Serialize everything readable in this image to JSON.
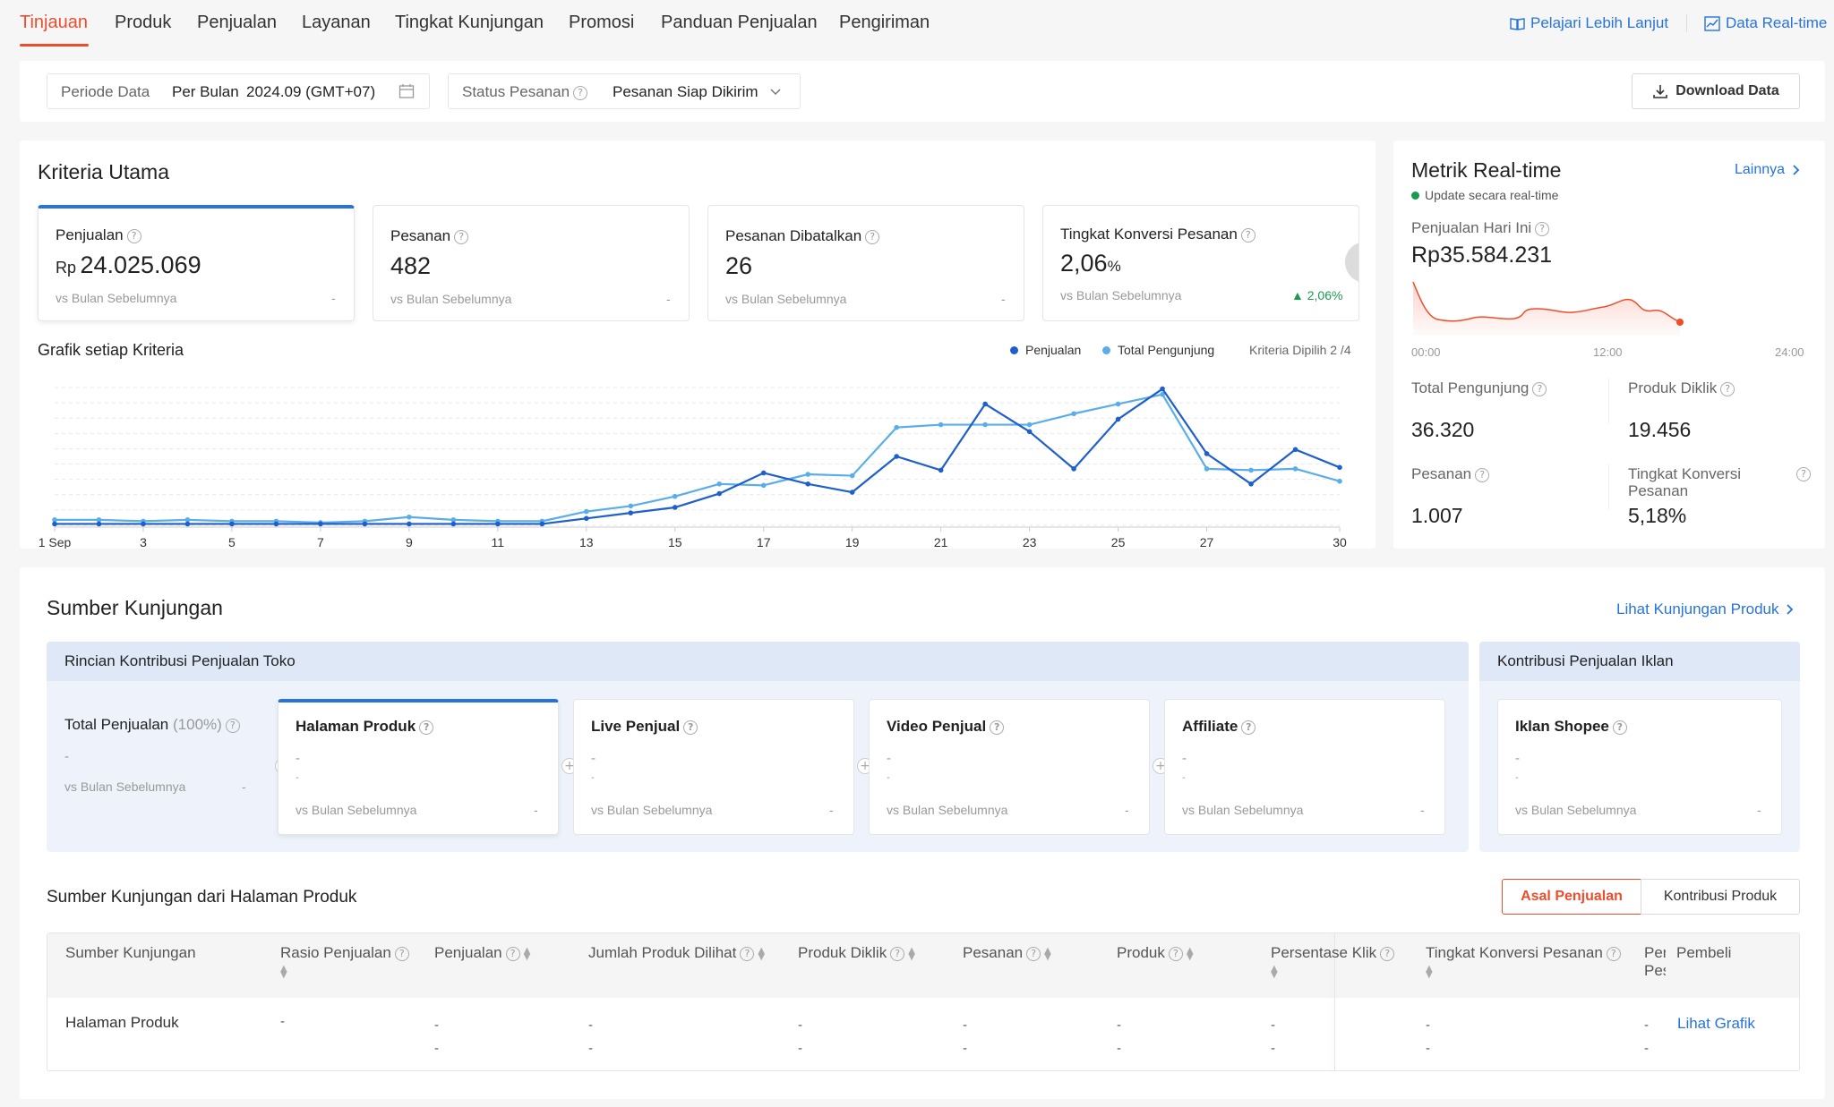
{
  "nav": {
    "tabs": [
      "Tinjauan",
      "Produk",
      "Penjualan",
      "Layanan",
      "Tingkat Kunjungan",
      "Promosi",
      "Panduan Penjualan",
      "Pengiriman"
    ],
    "learn_more": "Pelajari Lebih Lanjut",
    "realtime_data": "Data Real-time"
  },
  "filters": {
    "period_label": "Periode Data",
    "period_mode": "Per Bulan",
    "period_value": "2024.09 (GMT+07)",
    "status_label": "Status Pesanan",
    "status_value": "Pesanan Siap Dikirim",
    "download": "Download Data"
  },
  "kriteria": {
    "title": "Kriteria Utama",
    "vs_text": "vs Bulan Sebelumnya",
    "cards": [
      {
        "label": "Penjualan",
        "prefix": "Rp",
        "value": "24.025.069",
        "change": "-"
      },
      {
        "label": "Pesanan",
        "value": "482",
        "change": "-"
      },
      {
        "label": "Pesanan Dibatalkan",
        "value": "26",
        "change": "-"
      },
      {
        "label": "Tingkat Konversi Pesanan",
        "value": "2,06",
        "suffix": "%",
        "change": "▲ 2,06%"
      }
    ],
    "chart_title": "Grafik setiap Kriteria",
    "chart_selected": "Kriteria Dipilih 2 /4",
    "chart_colors": {
      "penjualan": "#1f5fcc",
      "pengunjung": "#5aaee8"
    }
  },
  "chart_data": {
    "type": "line",
    "x": [
      1,
      2,
      3,
      4,
      5,
      6,
      7,
      8,
      9,
      10,
      11,
      12,
      13,
      14,
      15,
      16,
      17,
      18,
      19,
      20,
      21,
      22,
      23,
      24,
      25,
      26,
      27,
      28,
      29,
      30
    ],
    "x_tick_labels": [
      "1 Sep",
      "3",
      "5",
      "7",
      "9",
      "11",
      "13",
      "15",
      "17",
      "19",
      "21",
      "23",
      "25",
      "27",
      "30"
    ],
    "x_tick_values": [
      1,
      3,
      5,
      7,
      9,
      11,
      13,
      15,
      17,
      19,
      21,
      23,
      25,
      27,
      30
    ],
    "ylim": [
      0,
      100
    ],
    "grid": true,
    "legend": "top-right",
    "series": [
      {
        "name": "Penjualan",
        "values": [
          1,
          1,
          1,
          1,
          1,
          1,
          1,
          1,
          1,
          1,
          1,
          1,
          5,
          9,
          13,
          23,
          38,
          30,
          24,
          50,
          40,
          88,
          68,
          41,
          77,
          99,
          52,
          30,
          55,
          42
        ]
      },
      {
        "name": "Total Pengunjung",
        "values": [
          4,
          4,
          3,
          4,
          3,
          3,
          2,
          3,
          6,
          4,
          3,
          3,
          10,
          14,
          21,
          30,
          29,
          37,
          36,
          71,
          73,
          73,
          73,
          81,
          88,
          95,
          41,
          40,
          41,
          32
        ]
      }
    ]
  },
  "realtime": {
    "title": "Metrik Real-time",
    "more": "Lainnya",
    "subtitle": "Update secara real-time",
    "sales_label": "Penjualan Hari Ini",
    "sales_value": "Rp35.584.231",
    "spark_labels": [
      "00:00",
      "12:00",
      "24:00"
    ],
    "metrics": [
      {
        "label": "Total Pengunjung",
        "value": "36.320"
      },
      {
        "label": "Produk Diklik",
        "value": "19.456"
      },
      {
        "label": "Pesanan",
        "value": "1.007"
      },
      {
        "label": "Tingkat Konversi Pesanan",
        "value": "5,18%"
      }
    ]
  },
  "sumber": {
    "title": "Sumber Kunjungan",
    "link": "Lihat Kunjungan Produk",
    "rincian_title": "Rincian Kontribusi Penjualan Toko",
    "iklan_title": "Kontribusi Penjualan Iklan",
    "total_label": "Total Penjualan",
    "total_pct": "(100%)",
    "dash": "-",
    "vs_text": "vs Bulan Sebelumnya",
    "channels": [
      "Halaman Produk",
      "Live Penjual",
      "Video Penjual",
      "Affiliate"
    ],
    "iklan": "Iklan Shopee"
  },
  "table": {
    "title": "Sumber Kunjungan dari Halaman Produk",
    "toggle": [
      "Asal Penjualan",
      "Kontribusi Produk"
    ],
    "headers": [
      "Sumber Kunjungan",
      "Rasio Penjualan",
      "Penjualan",
      "Jumlah Produk Dilihat",
      "Produk Diklik",
      "Pesanan",
      "Produk",
      "Persentase Klik",
      "Tingkat Konversi Pesanan",
      "Per",
      "Pes",
      "Pembeli"
    ],
    "row_label": "Halaman Produk",
    "row_link": "Lihat Grafik"
  }
}
